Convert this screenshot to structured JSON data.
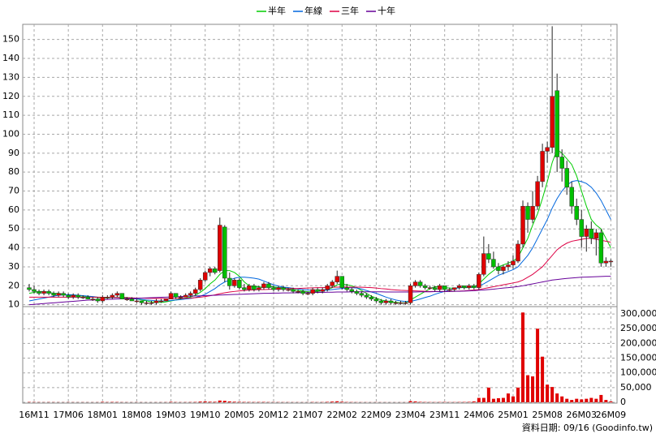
{
  "chart_data": {
    "type": "candlestick",
    "legend": "top",
    "grid": true,
    "up_color": "#e00000",
    "down_color": "#00c000",
    "source": "資料日期: 09/16 (Goodinfo.tw)",
    "categories": [
      null,
      "16M11",
      null,
      null,
      null,
      null,
      null,
      null,
      "17M06",
      null,
      null,
      null,
      null,
      null,
      null,
      "18M01",
      null,
      null,
      null,
      null,
      null,
      null,
      "18M08",
      null,
      null,
      null,
      null,
      null,
      null,
      "19M03",
      null,
      null,
      null,
      null,
      null,
      null,
      "19M10",
      null,
      null,
      null,
      null,
      null,
      null,
      "20M05",
      null,
      null,
      null,
      null,
      null,
      null,
      "20M12",
      null,
      null,
      null,
      null,
      null,
      null,
      "21M07",
      null,
      null,
      null,
      null,
      null,
      null,
      "22M02",
      null,
      null,
      null,
      null,
      null,
      null,
      "22M09",
      null,
      null,
      null,
      null,
      null,
      null,
      "23M04",
      null,
      null,
      null,
      null,
      null,
      null,
      "23M11",
      null,
      null,
      null,
      null,
      null,
      null,
      "24M06",
      null,
      null,
      null,
      null,
      null,
      null,
      "25M01",
      null,
      null,
      null,
      null,
      null,
      null,
      "25M08",
      null,
      null,
      null,
      null,
      null,
      null,
      "26M03",
      null,
      null,
      null,
      null,
      null,
      "26M09"
    ],
    "candles": [
      [
        19,
        21,
        17,
        18
      ],
      [
        18,
        20,
        16,
        17
      ],
      [
        17,
        18,
        15,
        16
      ],
      [
        16,
        18,
        15,
        17
      ],
      [
        17,
        18,
        15,
        16
      ],
      [
        16,
        17,
        14,
        15
      ],
      [
        15,
        17,
        14,
        16
      ],
      [
        16,
        17,
        14,
        15
      ],
      [
        15,
        16,
        13,
        14
      ],
      [
        14,
        16,
        13,
        15
      ],
      [
        15,
        16,
        13,
        14
      ],
      [
        14,
        15,
        13,
        14
      ],
      [
        14,
        15,
        13,
        13
      ],
      [
        13,
        14,
        12,
        13
      ],
      [
        13,
        14,
        11,
        12
      ],
      [
        12,
        15,
        11,
        14
      ],
      [
        14,
        15,
        13,
        14
      ],
      [
        14,
        16,
        13,
        15
      ],
      [
        15,
        17,
        14,
        16
      ],
      [
        16,
        16,
        13,
        13
      ],
      [
        13,
        14,
        12,
        13
      ],
      [
        13,
        14,
        12,
        12
      ],
      [
        12,
        13,
        11,
        12
      ],
      [
        12,
        12,
        10,
        11
      ],
      [
        11,
        12,
        10,
        11
      ],
      [
        11,
        12,
        10,
        11
      ],
      [
        11,
        13,
        10,
        12
      ],
      [
        12,
        13,
        11,
        12
      ],
      [
        12,
        13,
        12,
        13
      ],
      [
        13,
        17,
        13,
        16
      ],
      [
        16,
        16,
        13,
        14
      ],
      [
        14,
        15,
        13,
        14
      ],
      [
        14,
        16,
        14,
        15
      ],
      [
        15,
        17,
        14,
        16
      ],
      [
        16,
        19,
        15,
        18
      ],
      [
        18,
        24,
        17,
        23
      ],
      [
        23,
        28,
        22,
        27
      ],
      [
        27,
        30,
        25,
        29
      ],
      [
        29,
        30,
        26,
        27
      ],
      [
        28,
        56,
        27,
        52
      ],
      [
        51,
        52,
        22,
        24
      ],
      [
        24,
        27,
        18,
        20
      ],
      [
        20,
        24,
        19,
        23
      ],
      [
        23,
        24,
        18,
        19
      ],
      [
        19,
        21,
        17,
        18
      ],
      [
        18,
        21,
        17,
        20
      ],
      [
        20,
        21,
        17,
        18
      ],
      [
        18,
        20,
        17,
        19
      ],
      [
        19,
        22,
        18,
        21
      ],
      [
        21,
        22,
        18,
        19
      ],
      [
        19,
        20,
        17,
        18
      ],
      [
        18,
        20,
        17,
        19
      ],
      [
        19,
        20,
        17,
        18
      ],
      [
        18,
        19,
        17,
        18
      ],
      [
        18,
        19,
        16,
        17
      ],
      [
        17,
        18,
        16,
        17
      ],
      [
        17,
        18,
        15,
        16
      ],
      [
        16,
        17,
        15,
        16
      ],
      [
        16,
        19,
        15,
        18
      ],
      [
        18,
        19,
        16,
        17
      ],
      [
        17,
        19,
        16,
        18
      ],
      [
        18,
        21,
        17,
        20
      ],
      [
        20,
        23,
        19,
        22
      ],
      [
        22,
        28,
        21,
        25
      ],
      [
        25,
        25,
        18,
        19
      ],
      [
        19,
        21,
        17,
        18
      ],
      [
        18,
        19,
        16,
        17
      ],
      [
        17,
        18,
        15,
        16
      ],
      [
        16,
        17,
        14,
        15
      ],
      [
        15,
        16,
        13,
        14
      ],
      [
        14,
        15,
        12,
        13
      ],
      [
        13,
        14,
        11,
        12
      ],
      [
        12,
        13,
        10,
        11
      ],
      [
        11,
        13,
        10,
        12
      ],
      [
        12,
        13,
        10,
        11
      ],
      [
        11,
        12,
        10,
        11
      ],
      [
        11,
        12,
        10,
        11
      ],
      [
        11,
        12,
        10,
        11
      ],
      [
        11,
        21,
        10,
        20
      ],
      [
        20,
        23,
        19,
        22
      ],
      [
        22,
        23,
        19,
        20
      ],
      [
        20,
        21,
        18,
        19
      ],
      [
        19,
        20,
        18,
        19
      ],
      [
        19,
        20,
        17,
        18
      ],
      [
        18,
        21,
        17,
        20
      ],
      [
        20,
        20,
        17,
        18
      ],
      [
        18,
        19,
        17,
        18
      ],
      [
        18,
        19,
        17,
        19
      ],
      [
        19,
        21,
        18,
        20
      ],
      [
        20,
        20,
        18,
        19
      ],
      [
        19,
        21,
        18,
        20
      ],
      [
        20,
        21,
        18,
        19
      ],
      [
        19,
        27,
        18,
        26
      ],
      [
        26,
        46,
        25,
        37
      ],
      [
        37,
        42,
        32,
        34
      ],
      [
        34,
        38,
        29,
        30
      ],
      [
        30,
        32,
        26,
        28
      ],
      [
        28,
        31,
        26,
        30
      ],
      [
        30,
        33,
        28,
        31
      ],
      [
        31,
        36,
        29,
        33
      ],
      [
        33,
        44,
        32,
        42
      ],
      [
        42,
        65,
        40,
        62
      ],
      [
        62,
        64,
        48,
        55
      ],
      [
        55,
        70,
        53,
        62
      ],
      [
        62,
        78,
        60,
        75
      ],
      [
        75,
        95,
        72,
        91
      ],
      [
        91,
        96,
        85,
        93
      ],
      [
        93,
        157,
        90,
        120
      ],
      [
        123,
        132,
        80,
        88
      ],
      [
        88,
        92,
        75,
        82
      ],
      [
        82,
        86,
        68,
        72
      ],
      [
        72,
        75,
        58,
        62
      ],
      [
        62,
        66,
        52,
        55
      ],
      [
        55,
        60,
        40,
        46
      ],
      [
        46,
        52,
        38,
        50
      ],
      [
        50,
        54,
        42,
        45
      ],
      [
        45,
        50,
        36,
        48
      ],
      [
        48,
        50,
        30,
        32
      ],
      [
        32,
        35,
        30,
        33
      ],
      [
        33,
        34,
        30,
        33
      ]
    ],
    "ylim": [
      9,
      158
    ],
    "yticks": [
      10,
      20,
      30,
      40,
      50,
      60,
      70,
      80,
      90,
      100,
      110,
      120,
      130,
      140,
      150
    ],
    "series": [
      {
        "name": "半年",
        "color": "#00cc00",
        "values": [
          16,
          16.5,
          17,
          17,
          16.5,
          16,
          16,
          15.5,
          15,
          15,
          14.8,
          14.5,
          14.3,
          14,
          13.8,
          13.5,
          13.5,
          13.8,
          14,
          14,
          13.8,
          13.5,
          13,
          12.5,
          12,
          11.5,
          11.3,
          11.2,
          11.5,
          12,
          12.5,
          13,
          13.5,
          14,
          15,
          16.5,
          18.5,
          21,
          23,
          26,
          28,
          28,
          27,
          25,
          22,
          20,
          19.5,
          19.5,
          19,
          19.5,
          19.5,
          19,
          19,
          18.5,
          18,
          17.5,
          17.2,
          16.8,
          16.8,
          17,
          17.5,
          18,
          19,
          20.5,
          21,
          20.5,
          20,
          19,
          17.5,
          16,
          14.5,
          13.5,
          12.5,
          12,
          11.5,
          11.3,
          11,
          11,
          12.5,
          14,
          15.5,
          17,
          18.5,
          19.5,
          19.5,
          19,
          18.8,
          18.7,
          19,
          19,
          19,
          19.3,
          21,
          23.5,
          26,
          28,
          30,
          31,
          32,
          33,
          35,
          40,
          45,
          52,
          58,
          66,
          75,
          85,
          92,
          90,
          87,
          84,
          78,
          70,
          62,
          55,
          52,
          50,
          45,
          40
        ]
      },
      {
        "name": "年線",
        "color": "#0066dd",
        "values": [
          12,
          12.5,
          13,
          13.5,
          14,
          14.5,
          15,
          15.2,
          15.3,
          15.2,
          15,
          14.8,
          14.5,
          14.3,
          14,
          13.8,
          13.7,
          13.8,
          13.8,
          13.7,
          13.5,
          13.3,
          13,
          12.8,
          12.5,
          12.3,
          12,
          12,
          12,
          12.2,
          12.5,
          12.7,
          13,
          13.3,
          13.8,
          14.5,
          15.5,
          17,
          18.5,
          20.5,
          22,
          23,
          24,
          24.5,
          24.5,
          24.3,
          24,
          23.5,
          22.5,
          21.5,
          20.5,
          19.8,
          19.3,
          19,
          18.7,
          18.3,
          18,
          17.8,
          17.6,
          17.5,
          17.5,
          17.7,
          18,
          18.3,
          18.6,
          18.8,
          19,
          18.8,
          18.3,
          17.5,
          16.7,
          16,
          15,
          14,
          13.2,
          12.5,
          12,
          11.7,
          11.8,
          12.3,
          13,
          13.8,
          14.5,
          15.5,
          16.3,
          17,
          17.8,
          18.5,
          19,
          19.2,
          19.3,
          19.4,
          20,
          21,
          22.5,
          24,
          25.5,
          26.5,
          27.5,
          28.5,
          30,
          33,
          36,
          40,
          45,
          50,
          55,
          61,
          66,
          70,
          73,
          75,
          75.5,
          75,
          74,
          72,
          69,
          65,
          60,
          55
        ]
      },
      {
        "name": "三年",
        "color": "#dd0044",
        "values": [
          14,
          14,
          14,
          14,
          14,
          14,
          14,
          14,
          14,
          14,
          14,
          14,
          14,
          14,
          14,
          13.9,
          13.8,
          13.8,
          13.8,
          13.7,
          13.7,
          13.6,
          13.5,
          13.5,
          13.4,
          13.4,
          13.3,
          13.3,
          13.2,
          13.2,
          13.3,
          13.3,
          13.4,
          13.5,
          13.7,
          14,
          14.3,
          14.7,
          15.2,
          15.8,
          16.3,
          16.7,
          17,
          17.3,
          17.5,
          17.7,
          17.8,
          18,
          18,
          18.1,
          18.2,
          18.3,
          18.4,
          18.5,
          18.6,
          18.6,
          18.7,
          18.8,
          18.9,
          19,
          19,
          19.1,
          19.2,
          19.3,
          19.3,
          19.3,
          19.3,
          19.3,
          19.2,
          19.1,
          19,
          18.8,
          18.5,
          18.3,
          18,
          17.8,
          17.6,
          17.5,
          17.4,
          17.3,
          17.2,
          17.1,
          17,
          17,
          17,
          17,
          17,
          17.1,
          17.2,
          17.3,
          17.5,
          17.7,
          18,
          18.5,
          19,
          19.5,
          20,
          20.5,
          21,
          21.5,
          22,
          23,
          24.5,
          26,
          28,
          30,
          33,
          36,
          39,
          41,
          42.5,
          43.5,
          44,
          44.5,
          45,
          45,
          44.5,
          44,
          43.5,
          43
        ]
      },
      {
        "name": "十年",
        "color": "#660099",
        "values": [
          10,
          10.2,
          10.4,
          10.6,
          10.8,
          11,
          11.2,
          11.4,
          11.6,
          11.8,
          12,
          12.2,
          12.4,
          12.5,
          12.6,
          12.7,
          12.8,
          12.9,
          13,
          13.1,
          13.2,
          13.3,
          13.4,
          13.5,
          13.6,
          13.7,
          13.8,
          13.9,
          14,
          14.1,
          14.2,
          14.3,
          14.4,
          14.5,
          14.6,
          14.7,
          14.8,
          14.9,
          15,
          15.1,
          15.2,
          15.3,
          15.4,
          15.5,
          15.6,
          15.7,
          15.8,
          15.9,
          16,
          16,
          16.1,
          16.1,
          16.2,
          16.2,
          16.3,
          16.3,
          16.4,
          16.4,
          16.5,
          16.5,
          16.5,
          16.6,
          16.6,
          16.7,
          16.7,
          16.7,
          16.8,
          16.8,
          16.8,
          16.8,
          16.8,
          16.8,
          16.8,
          16.7,
          16.7,
          16.7,
          16.7,
          16.7,
          16.7,
          16.7,
          16.8,
          16.8,
          16.8,
          16.9,
          16.9,
          17,
          17,
          17.1,
          17.1,
          17.2,
          17.3,
          17.4,
          17.6,
          17.8,
          18,
          18.2,
          18.5,
          18.8,
          19,
          19.3,
          19.6,
          20,
          20.5,
          21,
          21.5,
          22,
          22.5,
          23,
          23.3,
          23.6,
          23.9,
          24.1,
          24.3,
          24.5,
          24.6,
          24.7,
          24.8,
          24.9,
          25,
          25
        ]
      }
    ],
    "volume": {
      "color": "#e00000",
      "ylim": [
        0,
        325000
      ],
      "yticks": [
        0,
        {
          "value": 50000,
          "label": "50,000"
        },
        {
          "value": 100000,
          "label": "100,000"
        },
        {
          "value": 150000,
          "label": "150,000"
        },
        {
          "value": 200000,
          "label": "200,000"
        },
        {
          "value": 250000,
          "label": "250,000"
        },
        {
          "value": 300000,
          "label": "300,000"
        }
      ],
      "values": [
        1000,
        800,
        600,
        500,
        700,
        600,
        500,
        400,
        600,
        500,
        400,
        500,
        400,
        400,
        500,
        1500,
        800,
        1200,
        1000,
        600,
        500,
        400,
        500,
        400,
        300,
        300,
        400,
        500,
        600,
        1500,
        800,
        600,
        700,
        900,
        1200,
        2500,
        3000,
        2000,
        1800,
        6000,
        5000,
        3000,
        2000,
        1500,
        1200,
        1000,
        900,
        1000,
        1200,
        800,
        700,
        700,
        600,
        600,
        500,
        500,
        400,
        400,
        900,
        600,
        800,
        1500,
        2500,
        3500,
        2000,
        1000,
        800,
        600,
        500,
        500,
        400,
        500,
        400,
        400,
        300,
        300,
        400,
        400,
        4000,
        3000,
        1500,
        1000,
        800,
        700,
        900,
        1000,
        700,
        800,
        1000,
        1200,
        1500,
        3000,
        15000,
        15000,
        50000,
        12000,
        14000,
        15000,
        30000,
        20000,
        50000,
        305000,
        92000,
        88000,
        250000,
        155000,
        60000,
        52000,
        30000,
        20000,
        12000,
        8000,
        12000,
        10000,
        12000,
        15000,
        12000,
        25000,
        8000,
        3000
      ]
    }
  }
}
